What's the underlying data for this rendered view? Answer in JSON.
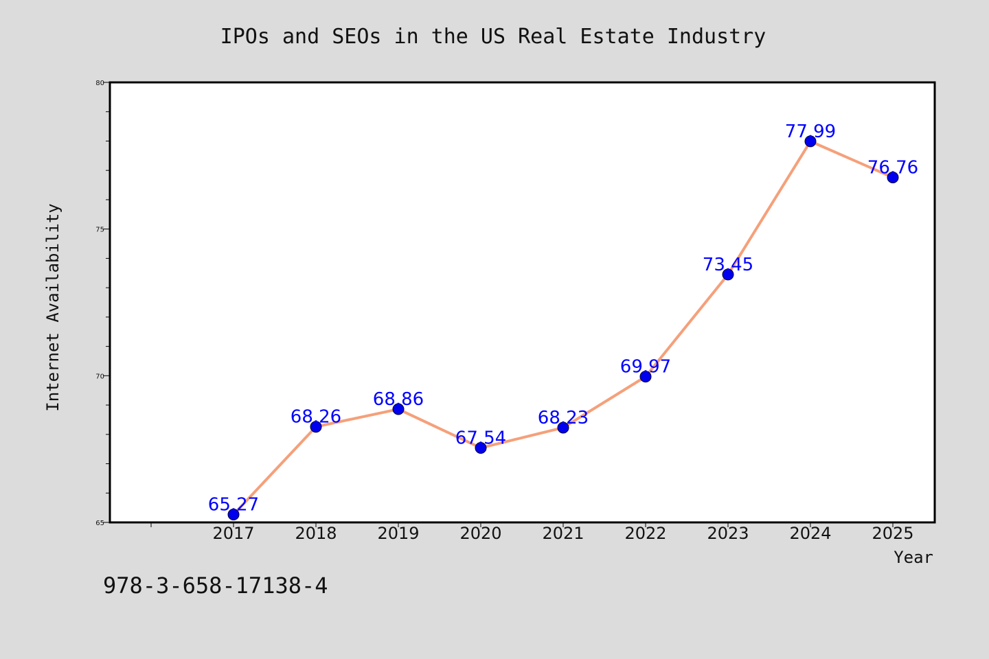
{
  "chart_data": {
    "type": "line",
    "title": "IPOs and SEOs in the US Real Estate Industry",
    "xlabel": "Year",
    "ylabel": "Internet Availability",
    "categories": [
      "2017",
      "2018",
      "2019",
      "2020",
      "2021",
      "2022",
      "2023",
      "2024",
      "2025"
    ],
    "series": [
      {
        "values": [
          65.27,
          68.26,
          68.86,
          67.54,
          68.23,
          69.97,
          73.45,
          77.99,
          76.76
        ],
        "labels": [
          "65.27",
          "68.26",
          "68.86",
          "67.54",
          "68.23",
          "69.97",
          "73.45",
          "77.99",
          "76.76"
        ],
        "line_color": "#f5a07a",
        "marker_color": "#0000ee",
        "label_color": "#0000ff"
      }
    ],
    "ylim": [
      65,
      80
    ],
    "yticks": [
      "65",
      "70",
      "75",
      "80"
    ],
    "grid": false,
    "legend": "none"
  },
  "annotation": {
    "text": "978-3-658-17138-4"
  },
  "colors": {
    "background": "#dcdcdc",
    "plot_background": "#ffffff",
    "axis": "#000000"
  }
}
